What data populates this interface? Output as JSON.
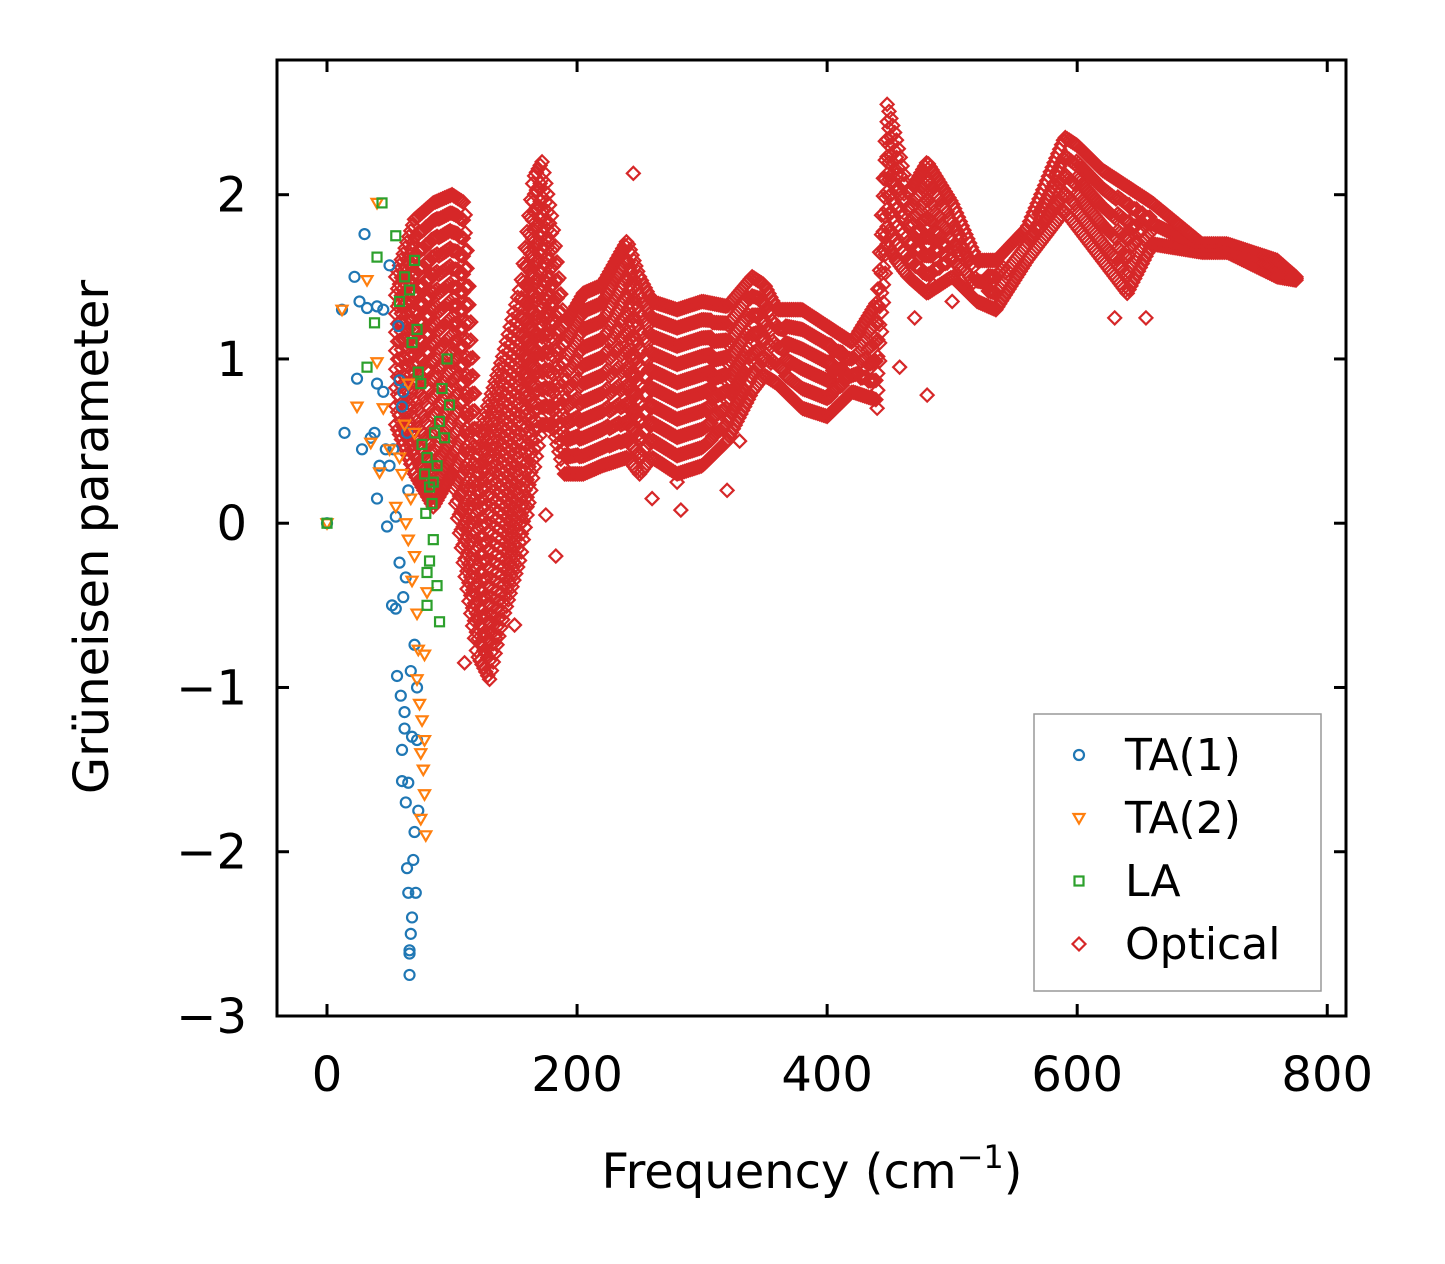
{
  "chart_data": {
    "type": "scatter",
    "title": "",
    "xlabel": "Frequency (cm",
    "xlabel_sup": "−1",
    "xlabel_end": ")",
    "ylabel": "Grüneisen parameter",
    "xlim": [
      -40,
      815
    ],
    "ylim": [
      -3.0,
      2.82
    ],
    "xticks": [
      0,
      200,
      400,
      600,
      800
    ],
    "xtick_labels": [
      "0",
      "200",
      "400",
      "600",
      "800"
    ],
    "yticks": [
      -3,
      -2,
      -1,
      0,
      1,
      2
    ],
    "ytick_labels": [
      "−3",
      "−2",
      "−1",
      "0",
      "1",
      "2"
    ],
    "legend_position": "bottom-right",
    "series": [
      {
        "name": "TA(1)",
        "marker": "circle",
        "color": "#1f77b4",
        "points": [
          [
            0,
            0
          ],
          [
            12,
            1.3
          ],
          [
            14,
            0.55
          ],
          [
            22,
            1.5
          ],
          [
            24,
            0.88
          ],
          [
            26,
            1.35
          ],
          [
            28,
            0.45
          ],
          [
            30,
            1.76
          ],
          [
            32,
            1.31
          ],
          [
            35,
            0.52
          ],
          [
            38,
            0.55
          ],
          [
            40,
            1.32
          ],
          [
            40,
            0.85
          ],
          [
            40,
            0.15
          ],
          [
            42,
            0.35
          ],
          [
            45,
            1.3
          ],
          [
            45,
            0.8
          ],
          [
            47,
            0.45
          ],
          [
            48,
            -0.02
          ],
          [
            50,
            0.35
          ],
          [
            50,
            1.57
          ],
          [
            52,
            -0.5
          ],
          [
            53,
            0.45
          ],
          [
            55,
            -0.52
          ],
          [
            55,
            0.04
          ],
          [
            56,
            -0.93
          ],
          [
            57,
            1.2
          ],
          [
            58,
            -0.24
          ],
          [
            58,
            0.87
          ],
          [
            59,
            -1.05
          ],
          [
            60,
            -1.38
          ],
          [
            60,
            -1.57
          ],
          [
            61,
            0.8
          ],
          [
            61,
            -0.45
          ],
          [
            62,
            -1.15
          ],
          [
            62,
            -1.25
          ],
          [
            63,
            -0.33
          ],
          [
            63,
            -1.7
          ],
          [
            64,
            0.55
          ],
          [
            64,
            -2.1
          ],
          [
            65,
            -2.25
          ],
          [
            65,
            -1.58
          ],
          [
            65,
            0.2
          ],
          [
            66,
            -2.75
          ],
          [
            66,
            -2.62
          ],
          [
            66,
            -2.6
          ],
          [
            67,
            -2.5
          ],
          [
            67,
            -0.9
          ],
          [
            68,
            -2.4
          ],
          [
            68,
            -1.3
          ],
          [
            69,
            -2.05
          ],
          [
            70,
            -1.88
          ],
          [
            70,
            -0.74
          ],
          [
            71,
            -2.25
          ],
          [
            72,
            -1.32
          ],
          [
            73,
            -1.75
          ],
          [
            72,
            -1.0
          ],
          [
            60,
            0.71
          ]
        ]
      },
      {
        "name": "TA(2)",
        "marker": "triangle-down",
        "color": "#ff7f0e",
        "points": [
          [
            0,
            0
          ],
          [
            12,
            1.3
          ],
          [
            24,
            0.71
          ],
          [
            32,
            1.48
          ],
          [
            35,
            0.49
          ],
          [
            40,
            1.95
          ],
          [
            40,
            0.98
          ],
          [
            42,
            0.31
          ],
          [
            45,
            0.7
          ],
          [
            50,
            0.45
          ],
          [
            55,
            0.1
          ],
          [
            58,
            0.4
          ],
          [
            60,
            0.3
          ],
          [
            62,
            0.6
          ],
          [
            63,
            0.0
          ],
          [
            65,
            -0.1
          ],
          [
            67,
            0.15
          ],
          [
            68,
            -0.35
          ],
          [
            70,
            -0.2
          ],
          [
            72,
            -0.55
          ],
          [
            72,
            -0.95
          ],
          [
            73,
            -0.77
          ],
          [
            74,
            -1.1
          ],
          [
            75,
            -1.4
          ],
          [
            76,
            -1.2
          ],
          [
            77,
            -1.5
          ],
          [
            78,
            -0.8
          ],
          [
            78,
            -1.65
          ],
          [
            79,
            -1.9
          ],
          [
            80,
            -0.42
          ],
          [
            75,
            -1.8
          ],
          [
            78,
            -1.32
          ],
          [
            65,
            0.85
          ],
          [
            70,
            0.55
          ]
        ]
      },
      {
        "name": "LA",
        "marker": "square",
        "color": "#2ca02c",
        "points": [
          [
            0,
            0
          ],
          [
            32,
            0.95
          ],
          [
            38,
            1.22
          ],
          [
            40,
            1.62
          ],
          [
            44,
            1.95
          ],
          [
            55,
            1.75
          ],
          [
            58,
            1.35
          ],
          [
            62,
            1.5
          ],
          [
            66,
            1.42
          ],
          [
            68,
            1.1
          ],
          [
            70,
            1.6
          ],
          [
            72,
            1.18
          ],
          [
            73,
            0.92
          ],
          [
            75,
            0.85
          ],
          [
            76,
            0.48
          ],
          [
            78,
            0.3
          ],
          [
            79,
            0.06
          ],
          [
            80,
            0.4
          ],
          [
            80,
            -0.3
          ],
          [
            82,
            -0.23
          ],
          [
            82,
            0.22
          ],
          [
            84,
            0.12
          ],
          [
            85,
            -0.1
          ],
          [
            86,
            0.55
          ],
          [
            88,
            0.35
          ],
          [
            88,
            -0.38
          ],
          [
            90,
            -0.6
          ],
          [
            90,
            0.62
          ],
          [
            92,
            0.82
          ],
          [
            94,
            0.52
          ],
          [
            96,
            1.0
          ],
          [
            98,
            0.72
          ],
          [
            80,
            -0.5
          ],
          [
            85,
            0.25
          ]
        ]
      },
      {
        "name": "Optical",
        "marker": "diamond",
        "color": "#d62728",
        "generated": "dense envelope curve with rows of points",
        "upper": [
          [
            55,
            1.5
          ],
          [
            70,
            1.85
          ],
          [
            85,
            1.95
          ],
          [
            100,
            2.0
          ],
          [
            110,
            1.95
          ],
          [
            120,
            0.5
          ],
          [
            140,
            1.0
          ],
          [
            155,
            1.45
          ],
          [
            165,
            2.1
          ],
          [
            172,
            2.2
          ],
          [
            180,
            1.85
          ],
          [
            190,
            1.2
          ],
          [
            205,
            1.4
          ],
          [
            220,
            1.45
          ],
          [
            240,
            1.72
          ],
          [
            250,
            1.5
          ],
          [
            260,
            1.35
          ],
          [
            280,
            1.3
          ],
          [
            300,
            1.35
          ],
          [
            320,
            1.32
          ],
          [
            340,
            1.5
          ],
          [
            350,
            1.45
          ],
          [
            360,
            1.3
          ],
          [
            380,
            1.3
          ],
          [
            400,
            1.2
          ],
          [
            420,
            1.1
          ],
          [
            440,
            1.35
          ],
          [
            448,
            2.55
          ],
          [
            455,
            2.35
          ],
          [
            465,
            2.0
          ],
          [
            480,
            2.2
          ],
          [
            500,
            1.95
          ],
          [
            520,
            1.6
          ],
          [
            535,
            1.6
          ],
          [
            560,
            1.8
          ],
          [
            590,
            2.35
          ],
          [
            600,
            2.3
          ],
          [
            620,
            2.15
          ],
          [
            640,
            2.05
          ],
          [
            660,
            1.95
          ],
          [
            700,
            1.7
          ],
          [
            720,
            1.7
          ],
          [
            760,
            1.6
          ],
          [
            775,
            1.5
          ]
        ],
        "lower": [
          [
            55,
            0.6
          ],
          [
            70,
            0.3
          ],
          [
            85,
            0.1
          ],
          [
            100,
            0.3
          ],
          [
            110,
            -0.3
          ],
          [
            120,
            -0.8
          ],
          [
            130,
            -0.95
          ],
          [
            140,
            -0.6
          ],
          [
            155,
            -0.2
          ],
          [
            165,
            0.3
          ],
          [
            172,
            0.6
          ],
          [
            180,
            0.6
          ],
          [
            190,
            0.3
          ],
          [
            205,
            0.3
          ],
          [
            220,
            0.35
          ],
          [
            240,
            0.4
          ],
          [
            250,
            0.3
          ],
          [
            260,
            0.4
          ],
          [
            280,
            0.3
          ],
          [
            300,
            0.35
          ],
          [
            320,
            0.5
          ],
          [
            340,
            0.8
          ],
          [
            350,
            0.9
          ],
          [
            360,
            0.85
          ],
          [
            380,
            0.7
          ],
          [
            400,
            0.65
          ],
          [
            420,
            0.8
          ],
          [
            440,
            0.75
          ],
          [
            448,
            1.7
          ],
          [
            455,
            1.6
          ],
          [
            465,
            1.5
          ],
          [
            480,
            1.4
          ],
          [
            500,
            1.5
          ],
          [
            520,
            1.35
          ],
          [
            535,
            1.3
          ],
          [
            560,
            1.6
          ],
          [
            590,
            1.9
          ],
          [
            600,
            1.8
          ],
          [
            620,
            1.6
          ],
          [
            640,
            1.4
          ],
          [
            660,
            1.7
          ],
          [
            700,
            1.65
          ],
          [
            720,
            1.65
          ],
          [
            760,
            1.5
          ],
          [
            775,
            1.48
          ]
        ],
        "outliers": [
          [
            245,
            2.13
          ],
          [
            283,
            0.08
          ],
          [
            320,
            0.2
          ],
          [
            183,
            -0.2
          ],
          [
            458,
            0.95
          ],
          [
            480,
            0.78
          ],
          [
            655,
            1.25
          ],
          [
            260,
            0.15
          ],
          [
            280,
            0.25
          ],
          [
            150,
            -0.62
          ],
          [
            135,
            -0.7
          ],
          [
            110,
            -0.85
          ],
          [
            440,
            0.7
          ],
          [
            470,
            1.25
          ],
          [
            485,
            1.45
          ],
          [
            500,
            1.35
          ],
          [
            630,
            1.25
          ],
          [
            640,
            1.4
          ],
          [
            160,
            0.1
          ],
          [
            175,
            0.05
          ],
          [
            330,
            0.5
          ]
        ]
      }
    ]
  }
}
